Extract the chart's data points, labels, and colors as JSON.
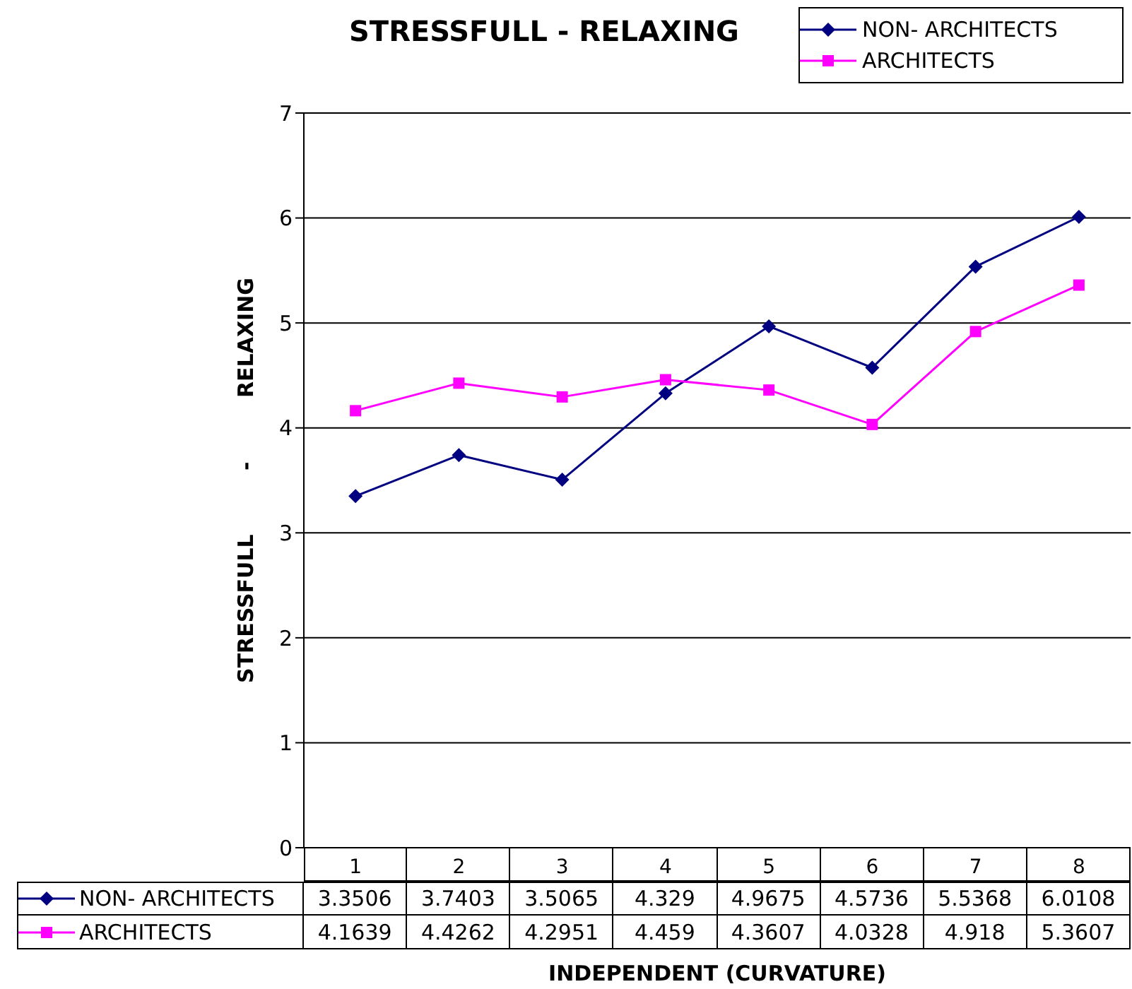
{
  "chart_data": {
    "type": "line",
    "title": "STRESSFULL - RELAXING",
    "xlabel": "INDEPENDENT (CURVATURE)",
    "ylabel": "STRESSFULL - RELAXING",
    "categories": [
      "1",
      "2",
      "3",
      "4",
      "5",
      "6",
      "7",
      "8"
    ],
    "series": [
      {
        "name": "NON- ARCHITECTS",
        "color": "#000080",
        "marker": "diamond",
        "values": [
          3.3506,
          3.7403,
          3.5065,
          4.329,
          4.9675,
          4.5736,
          5.5368,
          6.0108
        ]
      },
      {
        "name": "ARCHITECTS",
        "color": "#ff00ff",
        "marker": "square",
        "values": [
          4.1639,
          4.4262,
          4.2951,
          4.459,
          4.3607,
          4.0328,
          4.918,
          5.3607
        ]
      }
    ],
    "ylim": [
      0,
      7
    ],
    "yticks": [
      0,
      1,
      2,
      3,
      4,
      5,
      6,
      7
    ],
    "grid": "y",
    "legend": "top right",
    "data_labels": true,
    "line_style": "solid"
  }
}
